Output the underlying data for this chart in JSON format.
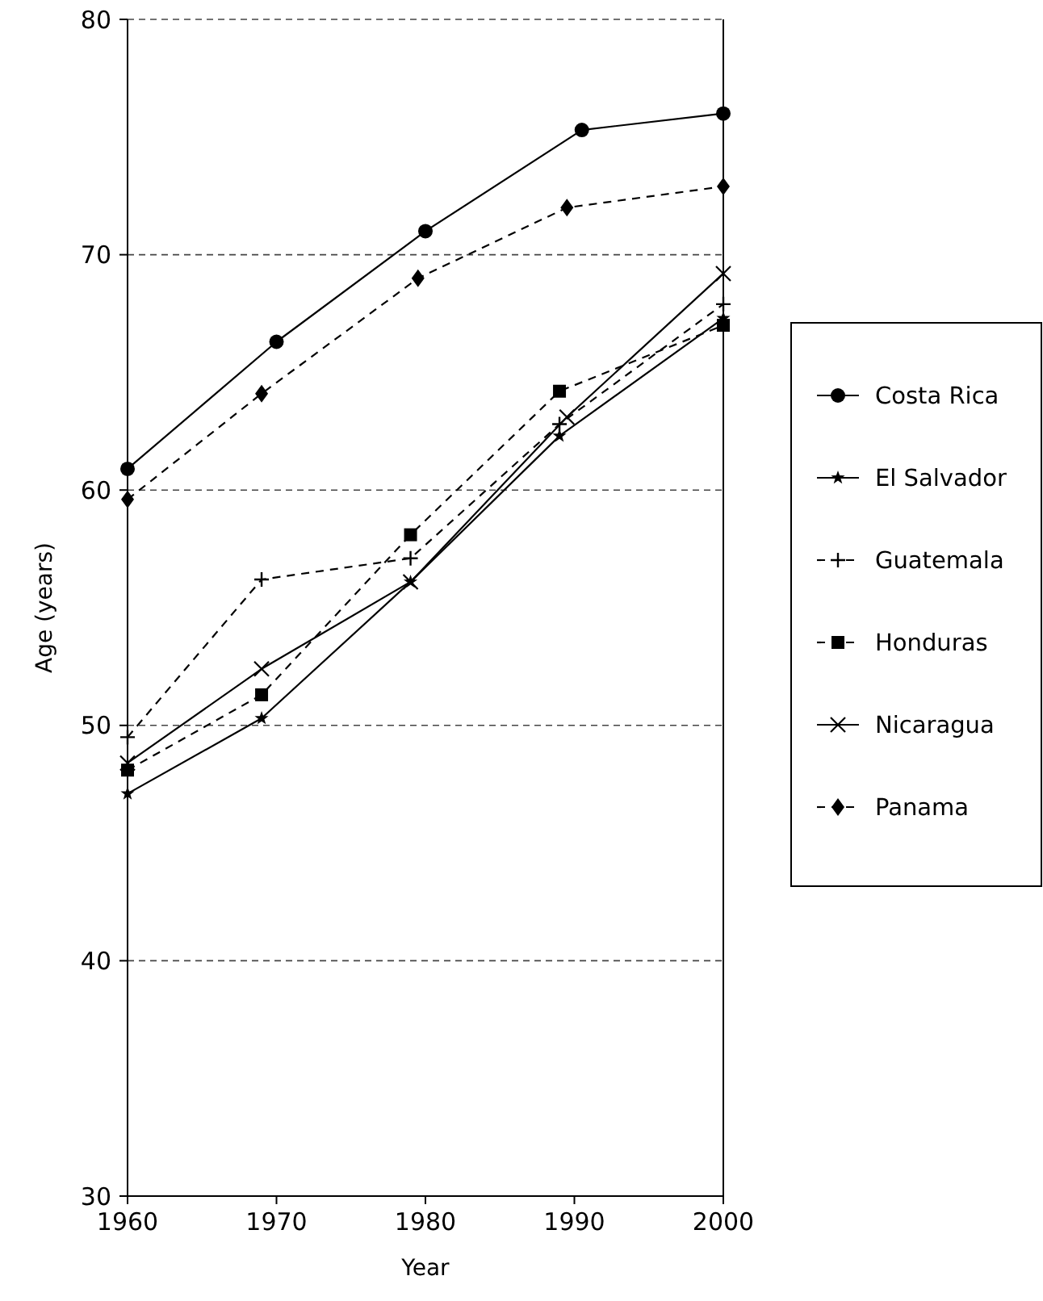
{
  "chart_data": {
    "type": "line",
    "xlabel": "Year",
    "ylabel": "Age (years)",
    "xlim": [
      1960,
      2000
    ],
    "xticks": [
      1960,
      1970,
      1980,
      1990,
      2000
    ],
    "ylim": [
      30,
      80
    ],
    "yticks": [
      30,
      40,
      50,
      60,
      70,
      80
    ],
    "grid": "y",
    "legend": "right",
    "series": [
      {
        "name": "Costa Rica",
        "color": "#000000",
        "marker": "circle",
        "line_style": "solid",
        "x": [
          1960,
          1970,
          1980,
          1990.5,
          2000
        ],
        "values": [
          60.9,
          66.3,
          71.0,
          75.3,
          76.0
        ]
      },
      {
        "name": "El Salvador",
        "color": "#000000",
        "marker": "star",
        "line_style": "solid",
        "x": [
          1960,
          1969,
          1979,
          1989,
          2000
        ],
        "values": [
          47.1,
          50.3,
          56.1,
          62.3,
          67.3
        ]
      },
      {
        "name": "Guatemala",
        "color": "#000000",
        "marker": "cross",
        "line_style": "dashed",
        "x": [
          1960,
          1969,
          1979,
          1989,
          2000
        ],
        "values": [
          49.5,
          56.2,
          57.1,
          62.8,
          67.9
        ]
      },
      {
        "name": "Honduras",
        "color": "#000000",
        "marker": "square",
        "line_style": "dashed",
        "x": [
          1960,
          1969,
          1979,
          1989,
          2000
        ],
        "values": [
          48.1,
          51.3,
          58.1,
          64.2,
          67.0
        ]
      },
      {
        "name": "Nicaragua",
        "color": "#000000",
        "marker": "x",
        "line_style": "solid",
        "x": [
          1960,
          1969,
          1979,
          1989.5,
          2000
        ],
        "values": [
          48.4,
          52.4,
          56.1,
          63.1,
          69.2
        ]
      },
      {
        "name": "Panama",
        "color": "#000000",
        "marker": "diamond",
        "line_style": "dashed",
        "x": [
          1960,
          1969,
          1979.5,
          1989.5,
          2000
        ],
        "values": [
          59.6,
          64.1,
          69.0,
          72.0,
          72.9
        ]
      }
    ]
  }
}
